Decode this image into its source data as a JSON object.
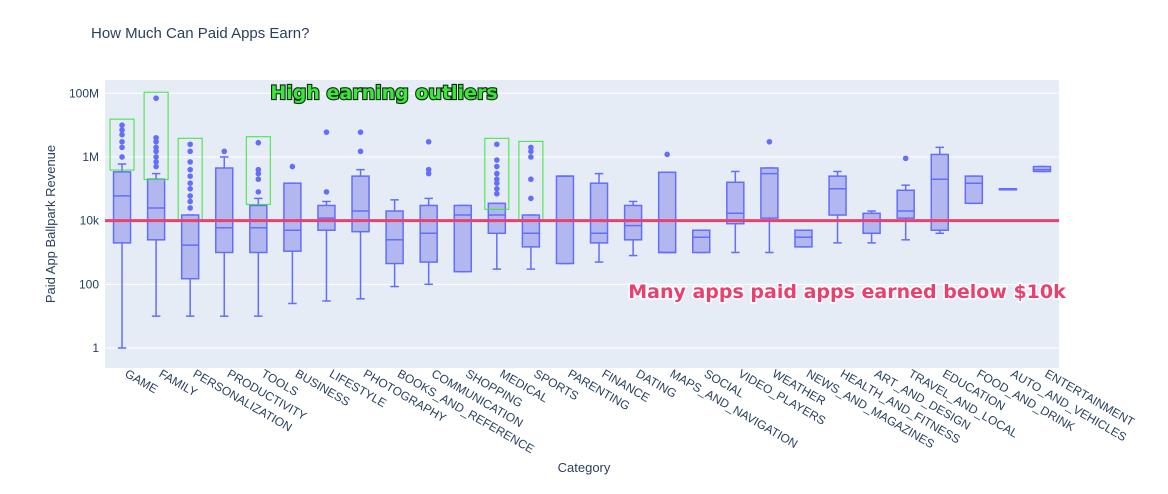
{
  "chart_data": {
    "type": "box",
    "title": "How Much Can Paid Apps Earn?",
    "xlabel": "Category",
    "ylabel": "Paid App Ballpark Revenue",
    "yscale": "log",
    "ylim": [
      0.7,
      200000000
    ],
    "yticks": [
      {
        "value": 1,
        "label": "1"
      },
      {
        "value": 100,
        "label": "100"
      },
      {
        "value": 10000,
        "label": "10k"
      },
      {
        "value": 1000000,
        "label": "1M"
      },
      {
        "value": 100000000,
        "label": "100M"
      }
    ],
    "grid": true,
    "box_color": "#636efa",
    "box_fill": "#b3b7ef",
    "plot_bg": "#e5ecf6",
    "reference_line": {
      "value": 10000,
      "color": "#e8416f"
    },
    "categories": [
      "GAME",
      "FAMILY",
      "PERSONALIZATION",
      "PRODUCTIVITY",
      "TOOLS",
      "BUSINESS",
      "LIFESTYLE",
      "PHOTOGRAPHY",
      "BOOKS_AND_REFERENCE",
      "COMMUNICATION",
      "SHOPPING",
      "MEDICAL",
      "SPORTS",
      "PARENTING",
      "FINANCE",
      "DATING",
      "MAPS_AND_NAVIGATION",
      "SOCIAL",
      "VIDEO_PLAYERS",
      "WEATHER",
      "NEWS_AND_MAGAZINES",
      "HEALTH_AND_FITNESS",
      "ART_AND_DESIGN",
      "TRAVEL_AND_LOCAL",
      "EDUCATION",
      "FOOD_AND_DRINK",
      "AUTO_AND_VEHICLES",
      "ENTERTAINMENT"
    ],
    "boxes": [
      {
        "min": 1,
        "q1": 2000,
        "median": 60000,
        "q3": 340000,
        "max": 600000,
        "outliers": [
          1000000,
          2000000,
          3000000,
          5000000,
          7000000,
          10000000
        ]
      },
      {
        "min": 10,
        "q1": 2500,
        "median": 25000,
        "q3": 200000,
        "max": 300000,
        "outliers": [
          500000,
          700000,
          1000000,
          1500000,
          2000000,
          3000000,
          4000000,
          70000000
        ]
      },
      {
        "min": 10,
        "q1": 150,
        "median": 1700,
        "q3": 15000,
        "max": 15000,
        "outliers": [
          25000,
          40000,
          60000,
          100000,
          150000,
          250000,
          400000,
          700000,
          1500000,
          2500000
        ]
      },
      {
        "min": 10,
        "q1": 1000,
        "median": 6000,
        "q3": 450000,
        "max": 1000000,
        "outliers": [
          1500000
        ]
      },
      {
        "min": 10,
        "q1": 1000,
        "median": 6000,
        "q3": 30000,
        "max": 50000,
        "outliers": [
          80000,
          200000,
          300000,
          400000,
          2800000
        ]
      },
      {
        "min": 25,
        "q1": 1100,
        "median": 5000,
        "q3": 150000,
        "max": 150000,
        "outliers": [
          500000
        ]
      },
      {
        "min": 30,
        "q1": 5000,
        "median": 12000,
        "q3": 30000,
        "max": 40000,
        "outliers": [
          80000,
          6000000
        ]
      },
      {
        "min": 35,
        "q1": 4500,
        "median": 20000,
        "q3": 250000,
        "max": 400000,
        "outliers": [
          1500000,
          6000000
        ]
      },
      {
        "min": 85,
        "q1": 450,
        "median": 2500,
        "q3": 20000,
        "max": 45000,
        "outliers": []
      },
      {
        "min": 100,
        "q1": 500,
        "median": 4000,
        "q3": 30000,
        "max": 50000,
        "outliers": [
          300000,
          400000,
          3000000
        ]
      },
      {
        "min": 250,
        "q1": 250,
        "median": 15000,
        "q3": 30000,
        "max": 30000,
        "outliers": []
      },
      {
        "min": 300,
        "q1": 4000,
        "median": 15000,
        "q3": 35000,
        "max": 35000,
        "outliers": [
          70000,
          100000,
          150000,
          200000,
          300000,
          500000,
          800000,
          2500000
        ]
      },
      {
        "min": 300,
        "q1": 1500,
        "median": 4000,
        "q3": 15000,
        "max": 15000,
        "outliers": [
          50000,
          200000,
          1000000,
          1500000,
          2000000
        ]
      },
      {
        "min": 450,
        "q1": 450,
        "median": 250000,
        "q3": 250000,
        "max": 250000,
        "outliers": []
      },
      {
        "min": 500,
        "q1": 2000,
        "median": 4000,
        "q3": 150000,
        "max": 300000,
        "outliers": []
      },
      {
        "min": 800,
        "q1": 2500,
        "median": 7000,
        "q3": 30000,
        "max": 40000,
        "outliers": []
      },
      {
        "min": 1000,
        "q1": 1000,
        "median": 1000,
        "q3": 330000,
        "max": 330000,
        "outliers": [
          1200000
        ]
      },
      {
        "min": 1000,
        "q1": 1000,
        "median": 3000,
        "q3": 5000,
        "max": 5000,
        "outliers": []
      },
      {
        "min": 1000,
        "q1": 8000,
        "median": 17000,
        "q3": 160000,
        "max": 350000,
        "outliers": []
      },
      {
        "min": 1000,
        "q1": 12000,
        "median": 300000,
        "q3": 450000,
        "max": 450000,
        "outliers": [
          3000000
        ]
      },
      {
        "min": 1500,
        "q1": 1500,
        "median": 3000,
        "q3": 5000,
        "max": 5000,
        "outliers": []
      },
      {
        "min": 2000,
        "q1": 15000,
        "median": 100000,
        "q3": 250000,
        "max": 350000,
        "outliers": []
      },
      {
        "min": 2000,
        "q1": 4000,
        "median": 4000,
        "q3": 17000,
        "max": 20000,
        "outliers": []
      },
      {
        "min": 2500,
        "q1": 12000,
        "median": 20000,
        "q3": 90000,
        "max": 130000,
        "outliers": [
          900000
        ]
      },
      {
        "min": 4000,
        "q1": 5000,
        "median": 200000,
        "q3": 1200000,
        "max": 2000000,
        "outliers": []
      },
      {
        "min": 35000,
        "q1": 35000,
        "median": 150000,
        "q3": 250000,
        "max": 250000,
        "outliers": []
      },
      {
        "min": 100000,
        "q1": 100000,
        "median": 100000,
        "q3": 100000,
        "max": 100000,
        "outliers": []
      },
      {
        "min": 350000,
        "q1": 350000,
        "median": 400000,
        "q3": 500000,
        "max": 500000,
        "outliers": []
      }
    ],
    "highlighted_categories": [
      "GAME",
      "FAMILY",
      "PERSONALIZATION",
      "TOOLS",
      "MEDICAL",
      "SPORTS"
    ],
    "annotations": [
      {
        "text": "High earning outliers",
        "color": "#39e639"
      },
      {
        "text": "Many apps paid apps earned below $10k",
        "color": "#e8416f"
      }
    ]
  }
}
